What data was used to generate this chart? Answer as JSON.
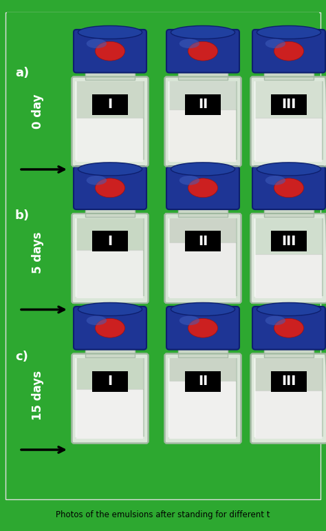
{
  "background_color": "#2da830",
  "figure_width": 4.74,
  "figure_height": 7.71,
  "dpi": 100,
  "rows": [
    "a)",
    "b)",
    "c)"
  ],
  "row_labels": [
    "0 day",
    "5 days",
    "15 days"
  ],
  "col_labels": [
    "I",
    "II",
    "III"
  ],
  "caption": "Photos of the emulsions after standing for different t",
  "caption_fontsize": 8.5,
  "row_label_fontsize": 12,
  "col_label_fontsize": 14,
  "panel_label_fontsize": 13,
  "cap_color": "#1e3595",
  "cap_dark": "#0d1f6e",
  "cap_red": "#cc2020",
  "label_box_color": "#000000",
  "label_text_color": "#ffffff",
  "white_border": "#f5f5f5",
  "photo_border": "#cccccc"
}
